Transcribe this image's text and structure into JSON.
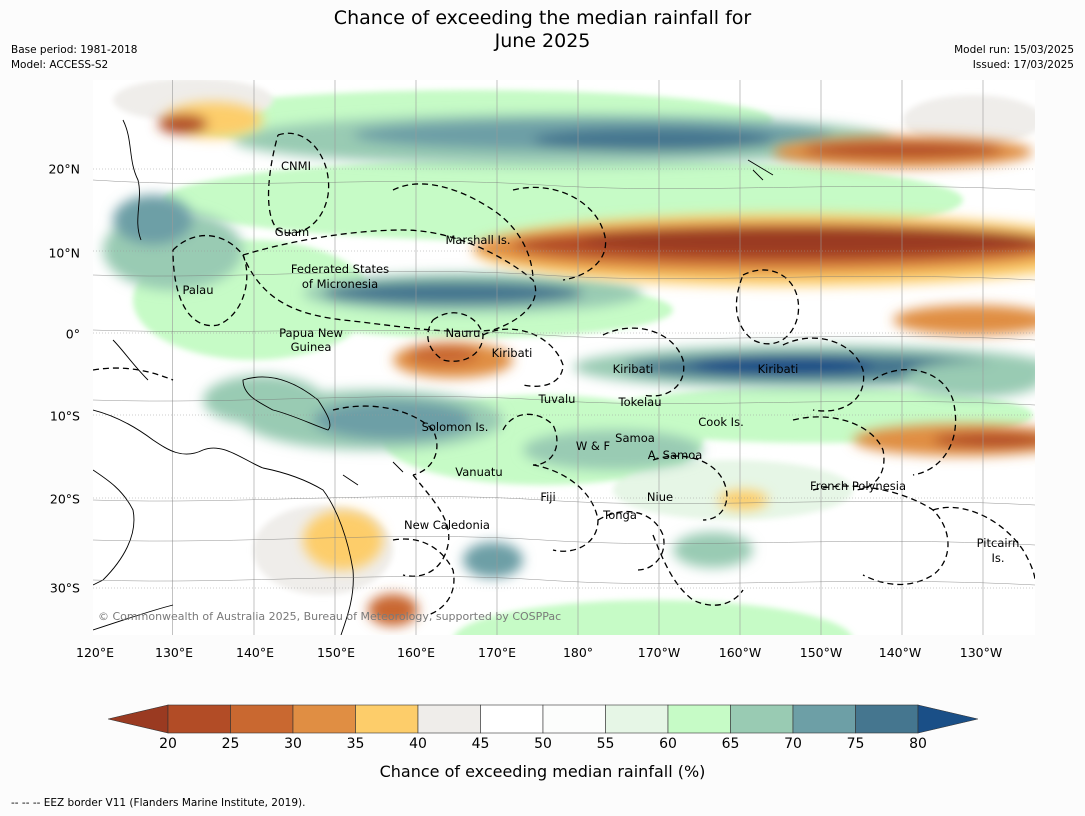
{
  "title_line1": "Chance of exceeding the median rainfall for",
  "title_line2": "June 2025",
  "meta_left": {
    "base_period": "Base period: 1981-2018",
    "model": "Model: ACCESS-S2"
  },
  "meta_right": {
    "model_run": "Model run: 15/03/2025",
    "issued": "Issued: 17/03/2025"
  },
  "copyright": "© Commonwealth of Australia 2025, Bureau of Meteorology, supported by COSPPac",
  "lat_ticks": [
    "20°N",
    "10°N",
    "0°",
    "10°S",
    "20°S",
    "30°S"
  ],
  "lon_ticks": [
    "120°E",
    "130°E",
    "140°E",
    "150°E",
    "160°E",
    "170°E",
    "180°",
    "170°W",
    "160°W",
    "150°W",
    "140°W",
    "130°W"
  ],
  "places": {
    "cnmi": "CNMI",
    "guam": "Guam",
    "marshall": "Marshall Is.",
    "fsm_1": "Federated States",
    "fsm_2": "of Micronesia",
    "palau": "Palau",
    "png_1": "Papua New",
    "png_2": "Guinea",
    "nauru": "Nauru",
    "kiribati_w": "Kiribati",
    "kiribati_c": "Kiribati",
    "kiribati_e": "Kiribati",
    "tuvalu": "Tuvalu",
    "tokelau": "Tokelau",
    "cook": "Cook Is.",
    "solomon": "Solomon Is.",
    "samoa": "Samoa",
    "wf": "W & F",
    "asamoa": "A. Samoa",
    "vanuatu": "Vanuatu",
    "fiji": "Fiji",
    "niue": "Niue",
    "tonga": "Tonga",
    "frpoly": "French Polynesia",
    "newcal": "New Caledonia",
    "pitcairn_1": "Pitcairn",
    "pitcairn_2": "Is."
  },
  "colorbar": {
    "ticks": [
      "20",
      "25",
      "30",
      "35",
      "40",
      "45",
      "50",
      "55",
      "60",
      "65",
      "70",
      "75",
      "80"
    ],
    "colors": [
      "#9a3a21",
      "#b24c26",
      "#c96830",
      "#e08e43",
      "#fdcd6a",
      "#efedea",
      "#ffffff",
      "#fcfdfc",
      "#e6f6e6",
      "#c6fbc6",
      "#99cbb3",
      "#6d9fa6",
      "#45768f",
      "#1a4f87"
    ],
    "label": "Chance of exceeding median rainfall (%)"
  },
  "footer": "--  --  -- EEZ border V11 (Flanders Marine Institute, 2019)."
}
